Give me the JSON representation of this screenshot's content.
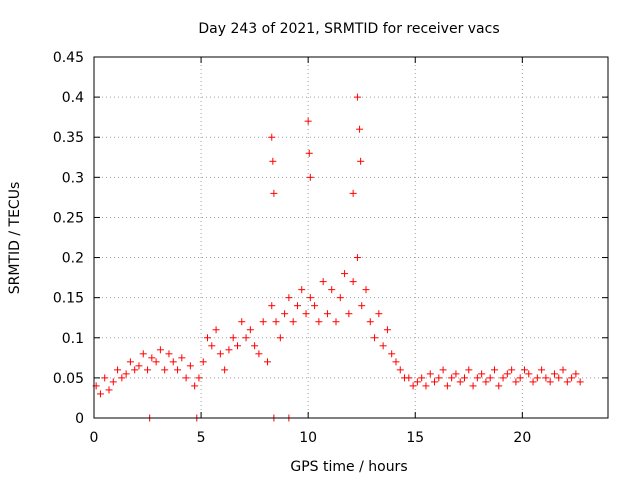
{
  "chart_data": {
    "type": "scatter",
    "title": "Day 243 of 2021, SRMTID for receiver vacs",
    "xlabel": "GPS time / hours",
    "ylabel": "SRMTID / TECUs",
    "xlim": [
      0,
      24
    ],
    "ylim": [
      0,
      0.45
    ],
    "x_ticks": [
      0,
      5,
      10,
      15,
      20
    ],
    "x_tick_labels": [
      "0",
      "5",
      "10",
      "15",
      "20"
    ],
    "y_ticks": [
      0,
      0.05,
      0.1,
      0.15,
      0.2,
      0.25,
      0.3,
      0.35,
      0.4,
      0.45
    ],
    "y_tick_labels": [
      "0",
      "0.05",
      "0.1",
      "0.15",
      "0.2",
      "0.25",
      "0.3",
      "0.35",
      "0.4",
      "0.45"
    ],
    "grid": true,
    "marker": "+",
    "color": "#ff0000",
    "series": [
      {
        "name": "SRMTID",
        "x": [
          0.1,
          0.3,
          0.5,
          0.7,
          0.9,
          1.1,
          1.3,
          1.5,
          1.7,
          1.9,
          2.1,
          2.3,
          2.5,
          2.7,
          2.9,
          3.1,
          3.3,
          3.5,
          3.7,
          3.9,
          4.1,
          4.3,
          4.5,
          4.7,
          4.9,
          5.1,
          5.3,
          5.5,
          5.7,
          5.9,
          6.1,
          6.3,
          6.5,
          6.7,
          6.9,
          7.1,
          7.3,
          7.5,
          7.7,
          7.9,
          8.1,
          8.3,
          8.5,
          8.7,
          8.9,
          9.1,
          9.3,
          9.5,
          9.7,
          9.9,
          10.1,
          10.3,
          10.5,
          10.7,
          10.9,
          11.1,
          11.3,
          11.5,
          11.7,
          11.9,
          12.1,
          12.3,
          12.5,
          12.7,
          12.9,
          13.1,
          13.3,
          13.5,
          13.7,
          13.9,
          14.1,
          14.3,
          14.5,
          14.7,
          14.9,
          15.1,
          15.3,
          15.5,
          15.7,
          15.9,
          16.1,
          16.3,
          16.5,
          16.7,
          16.9,
          17.1,
          17.3,
          17.5,
          17.7,
          17.9,
          18.1,
          18.3,
          18.5,
          18.7,
          18.9,
          19.1,
          19.3,
          19.5,
          19.7,
          19.9,
          20.1,
          20.3,
          20.5,
          20.7,
          20.9,
          21.1,
          21.3,
          21.5,
          21.7,
          21.9,
          22.1,
          22.3,
          22.5,
          22.7,
          8.3,
          8.35,
          8.4,
          10.0,
          10.05,
          10.1,
          12.3,
          12.4,
          12.45,
          12.1,
          2.6,
          4.8,
          8.4,
          9.1
        ],
        "y": [
          0.04,
          0.03,
          0.05,
          0.035,
          0.045,
          0.06,
          0.05,
          0.055,
          0.07,
          0.06,
          0.065,
          0.08,
          0.06,
          0.075,
          0.07,
          0.085,
          0.06,
          0.08,
          0.07,
          0.06,
          0.075,
          0.05,
          0.065,
          0.04,
          0.05,
          0.07,
          0.1,
          0.09,
          0.11,
          0.08,
          0.06,
          0.085,
          0.1,
          0.09,
          0.12,
          0.1,
          0.11,
          0.09,
          0.08,
          0.12,
          0.07,
          0.14,
          0.12,
          0.1,
          0.13,
          0.15,
          0.12,
          0.14,
          0.16,
          0.13,
          0.15,
          0.14,
          0.12,
          0.17,
          0.13,
          0.16,
          0.12,
          0.15,
          0.18,
          0.13,
          0.17,
          0.2,
          0.14,
          0.16,
          0.12,
          0.1,
          0.13,
          0.09,
          0.11,
          0.08,
          0.07,
          0.06,
          0.05,
          0.05,
          0.04,
          0.045,
          0.05,
          0.04,
          0.055,
          0.045,
          0.05,
          0.06,
          0.04,
          0.05,
          0.055,
          0.045,
          0.05,
          0.06,
          0.04,
          0.05,
          0.055,
          0.045,
          0.05,
          0.06,
          0.04,
          0.05,
          0.055,
          0.06,
          0.045,
          0.05,
          0.06,
          0.055,
          0.045,
          0.05,
          0.06,
          0.05,
          0.045,
          0.055,
          0.05,
          0.06,
          0.045,
          0.05,
          0.055,
          0.045,
          0.35,
          0.32,
          0.28,
          0.37,
          0.33,
          0.3,
          0.4,
          0.36,
          0.32,
          0.28,
          0.0,
          0.0,
          0.0,
          0.0
        ]
      }
    ]
  }
}
